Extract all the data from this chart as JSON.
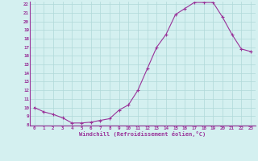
{
  "x": [
    0,
    1,
    2,
    3,
    4,
    5,
    6,
    7,
    8,
    9,
    10,
    11,
    12,
    13,
    14,
    15,
    16,
    17,
    18,
    19,
    20,
    21,
    22,
    23
  ],
  "y": [
    10.0,
    9.5,
    9.2,
    8.8,
    8.2,
    8.2,
    8.3,
    8.5,
    8.7,
    9.7,
    10.3,
    12.0,
    14.5,
    17.0,
    18.5,
    20.8,
    21.5,
    22.2,
    22.2,
    22.2,
    20.5,
    18.5,
    16.8,
    16.5
  ],
  "ylim": [
    8,
    22
  ],
  "yticks": [
    8,
    9,
    10,
    11,
    12,
    13,
    14,
    15,
    16,
    17,
    18,
    19,
    20,
    21,
    22
  ],
  "xticks": [
    0,
    1,
    2,
    3,
    4,
    5,
    6,
    7,
    8,
    9,
    10,
    11,
    12,
    13,
    14,
    15,
    16,
    17,
    18,
    19,
    20,
    21,
    22,
    23
  ],
  "xlabel": "Windchill (Refroidissement éolien,°C)",
  "line_color": "#993399",
  "marker": "+",
  "bg_color": "#d4f0f0",
  "grid_color": "#b0d8d8",
  "title": "",
  "figsize": [
    3.2,
    2.0
  ],
  "dpi": 100
}
